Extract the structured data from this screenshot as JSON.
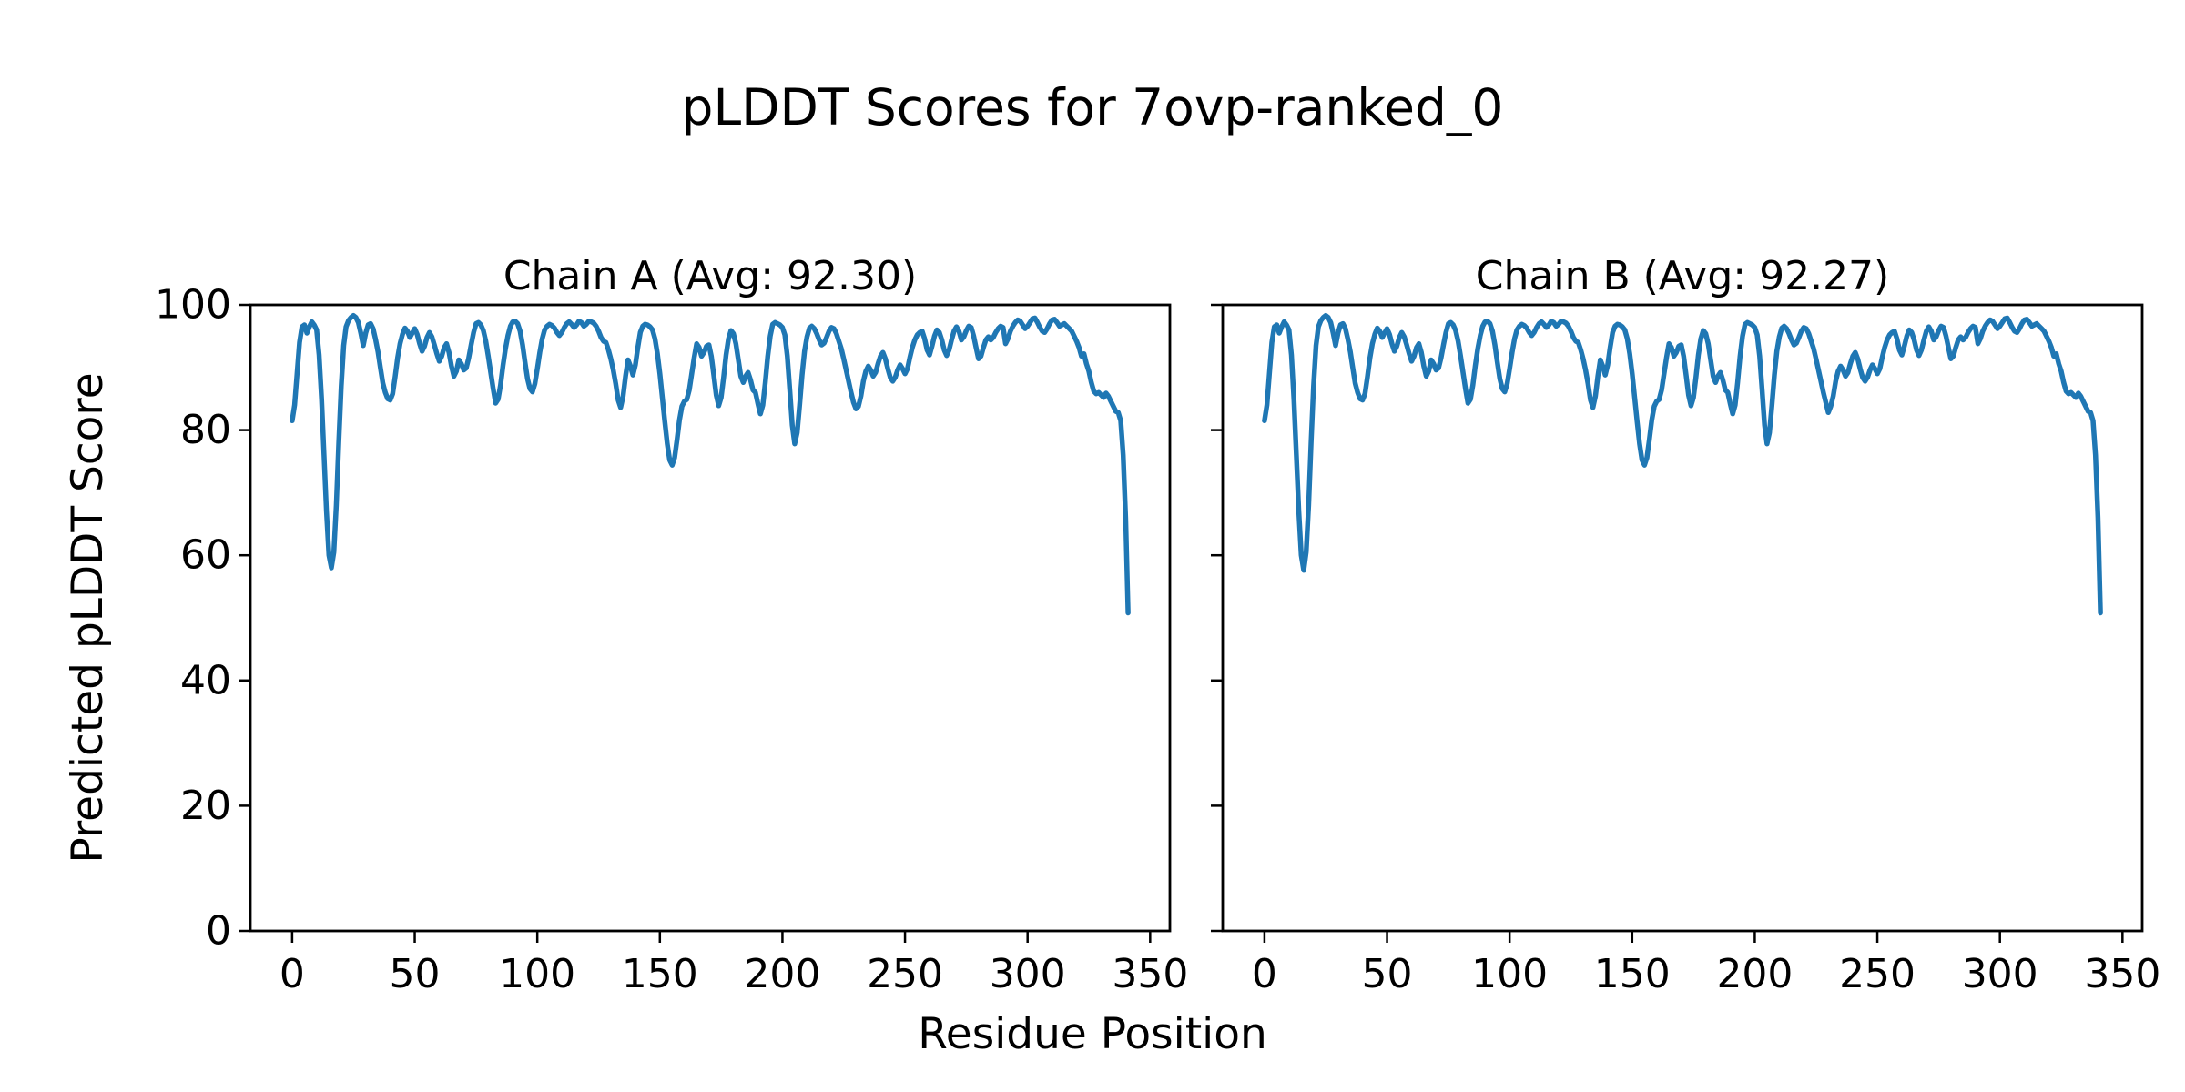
{
  "figure": {
    "title": "pLDDT Scores for 7ovp-ranked_0",
    "xlabel": "Residue Position",
    "ylabel": "Predicted pLDDT Score",
    "background_color": "#ffffff",
    "text_color": "#000000",
    "line_color": "#1f77b4"
  },
  "chart_data": [
    {
      "type": "line",
      "title": "Chain A (Avg: 92.30)",
      "chain": "A",
      "average_plddt": 92.3,
      "xlim": [
        -17.05,
        358.05
      ],
      "ylim": [
        0,
        100
      ],
      "xticks": [
        0,
        50,
        100,
        150,
        200,
        250,
        300,
        350
      ],
      "yticks": [
        0,
        20,
        40,
        60,
        80,
        100
      ],
      "show_ytick_labels": true,
      "grid": false,
      "legend_position": "none",
      "series": [
        {
          "name": "pLDDT Chain A",
          "color": "#1f77b4",
          "x0": 0,
          "dx": 1,
          "y": [
            81.5,
            84.0,
            89.0,
            94.0,
            96.5,
            96.8,
            95.5,
            96.5,
            97.3,
            96.8,
            96.0,
            92.0,
            85.0,
            76.0,
            67.0,
            60.0,
            58.0,
            60.5,
            68.0,
            78.0,
            87.0,
            93.5,
            96.5,
            97.5,
            98.0,
            98.3,
            98.0,
            97.2,
            95.5,
            93.5,
            95.5,
            96.8,
            97.0,
            96.2,
            94.5,
            92.5,
            90.0,
            87.5,
            86.0,
            85.0,
            84.8,
            85.8,
            88.5,
            91.5,
            93.8,
            95.3,
            96.3,
            95.8,
            94.8,
            95.5,
            96.2,
            95.3,
            93.8,
            92.6,
            93.4,
            94.8,
            95.6,
            94.9,
            93.6,
            92.2,
            91.0,
            91.8,
            93.2,
            93.8,
            92.4,
            90.2,
            88.6,
            89.4,
            91.2,
            90.6,
            89.6,
            89.9,
            91.5,
            93.6,
            95.6,
            97.0,
            97.2,
            96.8,
            95.9,
            94.2,
            91.8,
            89.2,
            86.6,
            84.3,
            84.9,
            87.2,
            90.3,
            93.0,
            95.1,
            96.6,
            97.3,
            97.4,
            97.0,
            95.8,
            93.6,
            90.8,
            88.2,
            86.6,
            86.1,
            87.4,
            89.8,
            92.4,
            94.6,
            96.0,
            96.6,
            96.9,
            96.7,
            96.3,
            95.6,
            95.1,
            95.6,
            96.4,
            97.0,
            97.3,
            96.9,
            96.4,
            96.8,
            97.4,
            97.2,
            96.6,
            96.9,
            97.4,
            97.3,
            97.1,
            96.6,
            95.8,
            94.8,
            94.2,
            94.0,
            92.8,
            91.4,
            89.6,
            87.4,
            84.8,
            83.6,
            85.4,
            88.6,
            91.2,
            90.2,
            88.8,
            90.4,
            93.2,
            95.6,
            96.6,
            96.9,
            96.8,
            96.5,
            96.0,
            94.6,
            92.2,
            89.0,
            85.2,
            81.4,
            77.8,
            75.2,
            74.4,
            75.6,
            78.4,
            81.6,
            83.8,
            84.6,
            84.9,
            86.4,
            89.0,
            91.6,
            93.8,
            93.2,
            91.8,
            92.4,
            93.4,
            93.6,
            91.8,
            88.8,
            85.6,
            83.9,
            85.2,
            88.4,
            92.0,
            94.6,
            95.9,
            95.4,
            93.8,
            91.2,
            88.6,
            87.6,
            88.6,
            89.2,
            88.0,
            86.4,
            86.0,
            84.2,
            82.6,
            84.0,
            87.6,
            91.8,
            95.0,
            96.9,
            97.2,
            97.0,
            96.8,
            96.4,
            95.2,
            91.8,
            86.4,
            80.8,
            77.8,
            79.6,
            84.0,
            88.8,
            92.6,
            94.9,
            96.3,
            96.6,
            96.2,
            95.4,
            94.4,
            93.6,
            93.9,
            94.8,
            95.8,
            96.4,
            96.2,
            95.4,
            94.2,
            93.0,
            91.4,
            89.6,
            87.8,
            86.0,
            84.4,
            83.4,
            83.8,
            85.4,
            87.8,
            89.4,
            90.2,
            89.6,
            88.6,
            89.2,
            90.6,
            91.8,
            92.4,
            91.4,
            89.8,
            88.4,
            87.8,
            88.4,
            89.6,
            90.4,
            89.8,
            89.0,
            89.8,
            91.6,
            93.2,
            94.4,
            95.2,
            95.6,
            95.8,
            94.6,
            92.8,
            92.0,
            93.4,
            95.0,
            96.0,
            95.6,
            94.4,
            92.8,
            91.9,
            92.8,
            94.4,
            95.8,
            96.5,
            95.8,
            94.4,
            94.9,
            95.9,
            96.6,
            96.4,
            95.0,
            93.2,
            91.4,
            91.8,
            93.2,
            94.4,
            94.9,
            94.4,
            94.8,
            95.6,
            96.2,
            96.6,
            96.4,
            93.8,
            94.6,
            95.8,
            96.6,
            97.2,
            97.6,
            97.4,
            96.8,
            96.2,
            96.6,
            97.2,
            97.8,
            97.9,
            97.2,
            96.4,
            95.8,
            95.6,
            96.2,
            97.0,
            97.6,
            97.7,
            97.2,
            96.6,
            96.8,
            97.0,
            96.6,
            96.2,
            95.8,
            95.0,
            94.2,
            93.2,
            91.8,
            92.2,
            90.6,
            89.4,
            87.6,
            86.2,
            85.8,
            86.0,
            85.6,
            85.2,
            85.9,
            85.4,
            84.6,
            83.8,
            83.0,
            82.8,
            81.5,
            76.0,
            66.0,
            50.8
          ]
        }
      ]
    },
    {
      "type": "line",
      "title": "Chain B (Avg: 92.27)",
      "chain": "B",
      "average_plddt": 92.27,
      "xlim": [
        -17.05,
        358.05
      ],
      "ylim": [
        0,
        100
      ],
      "xticks": [
        0,
        50,
        100,
        150,
        200,
        250,
        300,
        350
      ],
      "yticks": [
        0,
        20,
        40,
        60,
        80,
        100
      ],
      "show_ytick_labels": false,
      "grid": false,
      "legend_position": "none",
      "series": [
        {
          "name": "pLDDT Chain B",
          "color": "#1f77b4",
          "x0": 0,
          "dx": 1,
          "y": [
            81.5,
            84.0,
            89.0,
            94.0,
            96.5,
            96.8,
            95.5,
            96.5,
            97.3,
            96.8,
            96.0,
            92.0,
            85.0,
            76.0,
            67.0,
            60.0,
            57.6,
            60.5,
            68.0,
            78.0,
            87.0,
            93.5,
            96.5,
            97.5,
            98.0,
            98.3,
            98.0,
            97.2,
            95.5,
            93.5,
            95.5,
            96.8,
            97.0,
            96.2,
            94.5,
            92.5,
            90.0,
            87.5,
            86.0,
            85.0,
            84.8,
            85.8,
            88.5,
            91.5,
            93.8,
            95.3,
            96.3,
            95.8,
            94.8,
            95.5,
            96.2,
            95.3,
            93.8,
            92.6,
            93.4,
            94.8,
            95.6,
            94.9,
            93.6,
            92.2,
            91.0,
            91.8,
            93.2,
            93.8,
            92.4,
            90.2,
            88.6,
            89.4,
            91.2,
            90.6,
            89.6,
            89.9,
            91.5,
            93.6,
            95.6,
            97.0,
            97.2,
            96.8,
            95.9,
            94.2,
            91.8,
            89.2,
            86.6,
            84.3,
            84.9,
            87.2,
            90.3,
            93.0,
            95.1,
            96.6,
            97.3,
            97.4,
            97.0,
            95.8,
            93.6,
            90.8,
            88.2,
            86.6,
            86.1,
            87.4,
            89.8,
            92.4,
            94.6,
            96.0,
            96.6,
            96.9,
            96.7,
            96.3,
            95.6,
            95.1,
            95.6,
            96.4,
            97.0,
            97.3,
            96.9,
            96.4,
            96.8,
            97.4,
            97.2,
            96.6,
            96.9,
            97.4,
            97.3,
            97.1,
            96.6,
            95.8,
            94.8,
            94.2,
            94.0,
            92.8,
            91.4,
            89.6,
            87.4,
            84.8,
            83.6,
            85.4,
            88.6,
            91.2,
            90.2,
            88.8,
            90.4,
            93.2,
            95.6,
            96.6,
            96.9,
            96.8,
            96.5,
            96.0,
            94.6,
            92.2,
            89.0,
            85.2,
            81.4,
            77.8,
            75.2,
            74.4,
            75.6,
            78.4,
            81.6,
            83.8,
            84.6,
            84.9,
            86.4,
            89.0,
            91.6,
            93.8,
            93.2,
            91.8,
            92.4,
            93.4,
            93.6,
            91.8,
            88.8,
            85.6,
            83.9,
            85.2,
            88.4,
            92.0,
            94.6,
            95.9,
            95.4,
            93.8,
            91.2,
            88.6,
            87.6,
            88.6,
            89.2,
            88.0,
            86.4,
            86.0,
            84.2,
            82.6,
            84.0,
            87.6,
            91.8,
            95.0,
            96.9,
            97.2,
            97.0,
            96.8,
            96.4,
            95.2,
            91.8,
            86.4,
            80.8,
            77.8,
            79.6,
            84.0,
            88.8,
            92.6,
            94.9,
            96.3,
            96.6,
            96.2,
            95.4,
            94.4,
            93.6,
            93.9,
            94.8,
            95.8,
            96.4,
            96.2,
            95.4,
            94.2,
            93.0,
            91.4,
            89.6,
            87.8,
            86.0,
            84.4,
            82.8,
            83.8,
            85.4,
            87.8,
            89.4,
            90.2,
            89.6,
            88.6,
            89.2,
            90.6,
            91.8,
            92.4,
            91.4,
            89.8,
            88.4,
            87.8,
            88.4,
            89.6,
            90.4,
            89.8,
            89.0,
            89.8,
            91.6,
            93.2,
            94.4,
            95.2,
            95.6,
            95.8,
            94.6,
            92.8,
            92.0,
            93.4,
            95.0,
            96.0,
            95.6,
            94.4,
            92.8,
            91.9,
            92.8,
            94.4,
            95.8,
            96.5,
            95.8,
            94.4,
            94.9,
            95.9,
            96.6,
            96.4,
            95.0,
            93.2,
            91.4,
            91.8,
            93.2,
            94.4,
            94.9,
            94.4,
            94.8,
            95.6,
            96.2,
            96.6,
            96.4,
            93.8,
            94.6,
            95.8,
            96.6,
            97.2,
            97.6,
            97.4,
            96.8,
            96.2,
            96.6,
            97.2,
            97.8,
            97.9,
            97.2,
            96.4,
            95.8,
            95.6,
            96.2,
            97.0,
            97.6,
            97.7,
            97.2,
            96.6,
            96.8,
            97.0,
            96.6,
            96.2,
            95.8,
            95.0,
            94.2,
            93.2,
            91.8,
            92.2,
            90.6,
            89.4,
            87.6,
            86.2,
            85.8,
            86.0,
            85.6,
            85.2,
            85.9,
            85.4,
            84.6,
            83.8,
            83.0,
            82.8,
            81.5,
            76.0,
            66.0,
            50.8
          ]
        }
      ]
    }
  ]
}
